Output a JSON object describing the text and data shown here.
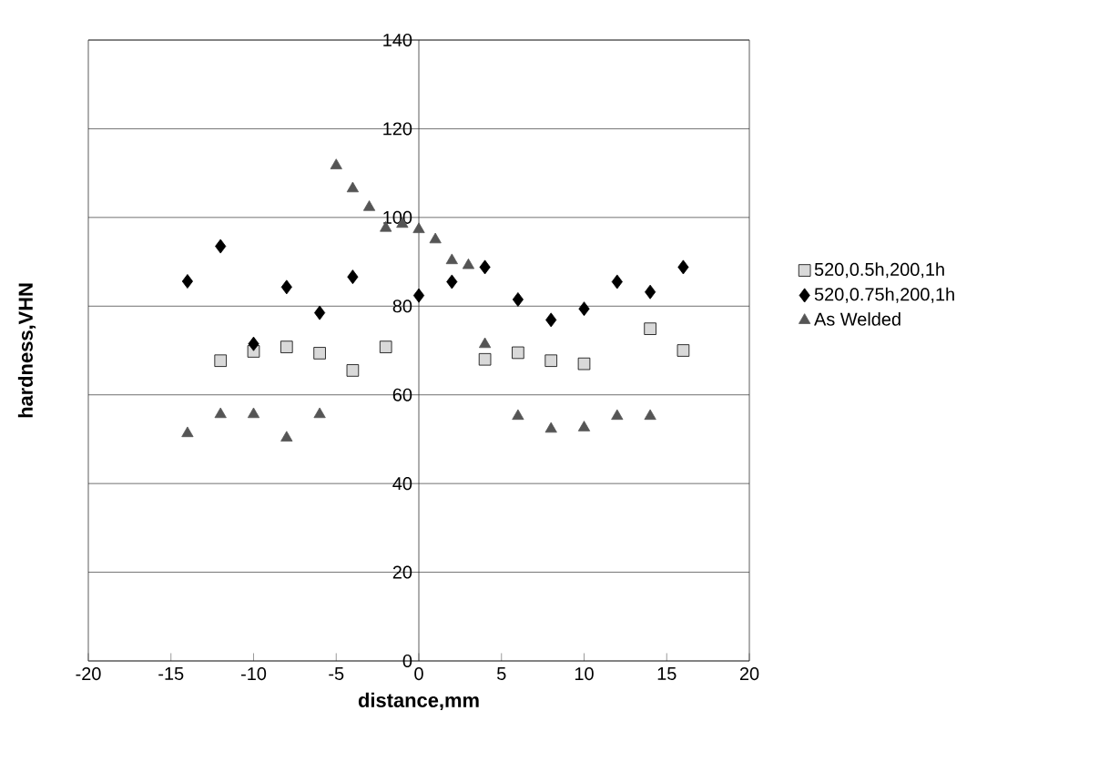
{
  "chart_data": {
    "type": "scatter",
    "xlabel": "distance,mm",
    "ylabel": "hardness,VHN",
    "xlim": [
      -20,
      20
    ],
    "xticks": [
      -20,
      -15,
      -10,
      -5,
      0,
      5,
      10,
      15,
      20
    ],
    "ylim": [
      0,
      140
    ],
    "yticks": [
      0,
      20,
      40,
      60,
      80,
      100,
      120,
      140
    ],
    "grid": "y",
    "legend": "right",
    "series": [
      {
        "name": "520,0.5h,200,1h",
        "color": "#d9d9d9",
        "marker": "square",
        "x": [
          -12,
          -10,
          -8,
          -6,
          -4,
          -2,
          4,
          6,
          8,
          10,
          14,
          16
        ],
        "values": [
          67.7,
          69.8,
          70.8,
          69.4,
          65.5,
          70.8,
          68,
          69.5,
          67.7,
          67,
          74.9,
          70
        ]
      },
      {
        "name": "520,0.75h,200,1h",
        "color": "#000000",
        "marker": "diamond",
        "x": [
          -14,
          -12,
          -10,
          -8,
          -6,
          -4,
          0,
          2,
          4,
          6,
          8,
          10,
          12,
          14,
          16
        ],
        "values": [
          85.6,
          93.5,
          71.5,
          84.3,
          78.5,
          86.6,
          82.4,
          85.5,
          88.8,
          81.5,
          76.9,
          79.4,
          85.5,
          83.2,
          88.8
        ]
      },
      {
        "name": "As Welded",
        "color": "#555555",
        "marker": "triangle",
        "x": [
          -14,
          -12,
          -10,
          -8,
          -6,
          -5,
          -4,
          -3,
          -2,
          -1,
          0,
          1,
          2,
          3,
          4,
          6,
          8,
          10,
          12,
          14
        ],
        "values": [
          51.3,
          55.6,
          55.6,
          50.3,
          55.6,
          111.7,
          106.5,
          102.3,
          97.6,
          98.5,
          97.3,
          95,
          90.3,
          89.2,
          71.4,
          55.2,
          52.3,
          52.6,
          55.2,
          55.2
        ]
      }
    ]
  }
}
